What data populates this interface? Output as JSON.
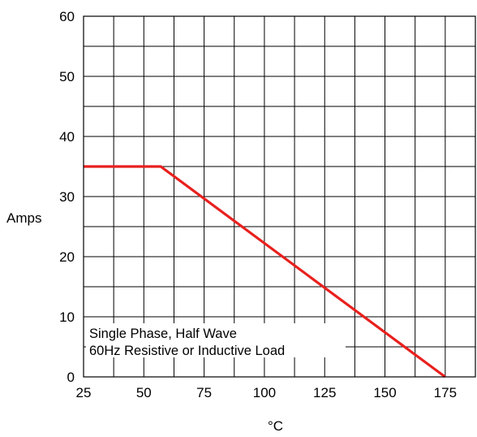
{
  "chart_data": {
    "type": "line",
    "xlabel": "°C",
    "ylabel": "Amps",
    "xlim": [
      25,
      187.5
    ],
    "ylim": [
      0,
      60
    ],
    "x_ticks": [
      "25",
      "50",
      "75",
      "100",
      "125",
      "150",
      "175"
    ],
    "y_ticks": [
      "0",
      "10",
      "20",
      "30",
      "40",
      "50",
      "60"
    ],
    "grid": true,
    "series": [
      {
        "color": "#e8201e",
        "points": [
          [
            25,
            35
          ],
          [
            57,
            35
          ],
          [
            175,
            0
          ]
        ]
      }
    ],
    "annotation": {
      "line1": "Single Phase, Half Wave",
      "line2": "60Hz Resistive or Inductive Load"
    }
  }
}
